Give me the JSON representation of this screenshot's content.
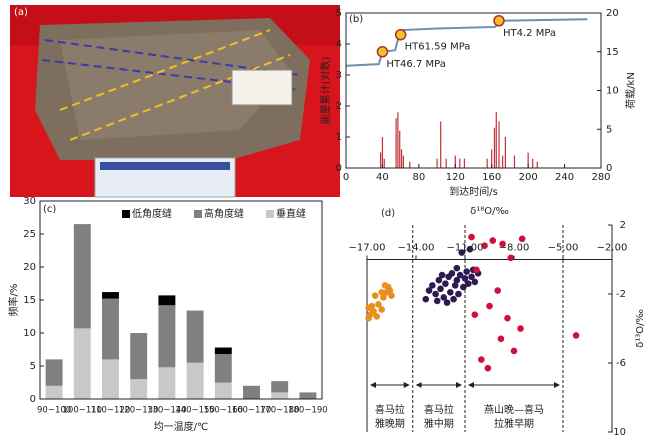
{
  "photo": {
    "label": "(a)"
  },
  "chart_data": [
    {
      "type": "line",
      "label": "(b)",
      "xlabel": "到达时间/s",
      "ylabel": "能量累计(对数)",
      "y2label": "荷载/kN",
      "xlim": [
        0,
        280
      ],
      "xticks": [
        0,
        40,
        80,
        120,
        160,
        200,
        240,
        280
      ],
      "ylim": [
        0,
        5
      ],
      "yticks": [
        0,
        1,
        2,
        3,
        4,
        5
      ],
      "y2lim": [
        0,
        20
      ],
      "y2ticks": [
        0,
        5,
        10,
        15,
        20
      ],
      "series": [
        {
          "type": "line",
          "color": "#6f8fb0",
          "x": [
            0,
            36,
            40,
            54,
            58,
            62,
            100,
            164,
            168,
            265
          ],
          "values": [
            3.3,
            3.35,
            3.75,
            3.8,
            4.25,
            4.45,
            4.5,
            4.55,
            4.75,
            4.8
          ]
        },
        {
          "type": "bar",
          "color": "#c0303a",
          "x": [
            38,
            40,
            42,
            55,
            57,
            59,
            61,
            63,
            70,
            100,
            104,
            110,
            120,
            125,
            130,
            155,
            160,
            163,
            165,
            168,
            172,
            175,
            185,
            200,
            205,
            210
          ],
          "values": [
            0.5,
            1.0,
            0.3,
            1.6,
            1.8,
            1.2,
            0.6,
            0.4,
            0.2,
            0.3,
            1.5,
            0.3,
            0.4,
            0.3,
            0.3,
            0.3,
            0.6,
            1.3,
            1.8,
            1.5,
            0.4,
            1.0,
            0.4,
            0.5,
            0.3,
            0.2
          ]
        }
      ],
      "annotations": [
        {
          "text": "HT46.7 MPa",
          "x": 40,
          "y": 3.75
        },
        {
          "text": "HT61.59 MPa",
          "x": 60,
          "y": 4.3
        },
        {
          "text": "HT4.2 MPa",
          "x": 168,
          "y": 4.75
        }
      ]
    },
    {
      "type": "bar",
      "label": "(c)",
      "stacked": true,
      "xlabel": "均一温度/℃",
      "ylabel": "频率/%",
      "categories": [
        "90~100",
        "100~110",
        "110~120",
        "120~130",
        "130~140",
        "140~150",
        "150~160",
        "160~170",
        "170~180",
        "180~190"
      ],
      "ylim": [
        0,
        30
      ],
      "yticks": [
        0,
        5,
        10,
        15,
        20,
        25,
        30
      ],
      "series": [
        {
          "name": "低角度缝",
          "color": "#000000",
          "values": [
            0,
            0,
            1,
            0,
            1.5,
            0,
            1,
            0,
            0,
            0
          ]
        },
        {
          "name": "高角度缝",
          "color": "#808080",
          "values": [
            4,
            15.8,
            9.2,
            7,
            9.4,
            7.9,
            4.3,
            2,
            1.7,
            1
          ]
        },
        {
          "name": "垂直缝",
          "color": "#c8c8c8",
          "values": [
            2,
            10.7,
            6,
            3,
            4.8,
            5.5,
            2.5,
            0,
            1,
            0
          ]
        }
      ]
    },
    {
      "type": "scatter",
      "label": "(d)",
      "xlabel": "δ¹⁸O/‰",
      "y2label": "δ¹³O/‰",
      "xlim": [
        -17,
        -2
      ],
      "xticks": [
        {
          "value": -17,
          "label": "−17.00"
        },
        {
          "value": -14,
          "label": "−14.00"
        },
        {
          "value": -11,
          "label": "−11.00"
        },
        {
          "value": -8,
          "label": "−8.00"
        },
        {
          "value": -5,
          "label": "−5.00"
        },
        {
          "value": -2,
          "label": "−2.00"
        }
      ],
      "ylim": [
        2,
        -10
      ],
      "yticks": [
        2,
        -2,
        -6,
        -10
      ],
      "series": [
        {
          "color": "#e8901e",
          "x": [
            -16.9,
            -16.8,
            -16.6,
            -16.4,
            -16.9,
            -16.3,
            -16.1,
            -16.5,
            -16.0,
            -15.8,
            -15.6,
            -15.5,
            -15.9,
            -15.7,
            -16.1,
            -16.7
          ],
          "values": [
            -3.4,
            -3.2,
            -3.0,
            -3.3,
            -2.8,
            -2.6,
            -2.9,
            -2.1,
            -2.2,
            -1.9,
            -1.8,
            -2.1,
            -1.5,
            -1.6,
            -1.9,
            -2.7
          ]
        },
        {
          "color": "#2e1a4f",
          "x": [
            -13.2,
            -13.0,
            -12.8,
            -12.6,
            -12.5,
            -12.3,
            -12.2,
            -12.0,
            -11.9,
            -11.8,
            -11.6,
            -11.5,
            -11.4,
            -11.3,
            -11.1,
            -11.0,
            -10.9,
            -10.8,
            -10.6,
            -10.5,
            -12.7,
            -12.1,
            -11.7,
            -10.4,
            -10.2,
            -11.2,
            -10.7,
            -13.4,
            -12.4,
            -11.5
          ],
          "values": [
            -1.8,
            -1.5,
            -2.0,
            -1.2,
            -1.7,
            -2.2,
            -1.4,
            -1.0,
            -1.9,
            -0.8,
            -1.5,
            -1.2,
            -2.0,
            -0.9,
            -1.6,
            -1.1,
            -0.7,
            -1.4,
            -1.0,
            -0.6,
            -2.4,
            -2.5,
            -2.3,
            -1.3,
            -0.8,
            0.4,
            0.6,
            -2.3,
            -0.9,
            -0.5
          ]
        },
        {
          "color": "#d0103a",
          "x": [
            -10.6,
            -9.8,
            -9.3,
            -8.7,
            -8.2,
            -7.5,
            -10.3,
            -9.0,
            -9.5,
            -8.4,
            -8.8,
            -7.6,
            -8.0,
            -10.0,
            -9.6,
            -4.2,
            -10.4
          ],
          "values": [
            1.3,
            0.8,
            1.1,
            0.9,
            0.1,
            1.2,
            -0.6,
            -1.8,
            -2.7,
            -3.4,
            -4.6,
            -4.0,
            -5.3,
            -5.8,
            -6.3,
            -4.4,
            -3.2
          ]
        }
      ],
      "periods": [
        {
          "label": [
            "喜马拉",
            "雅晚期"
          ],
          "from": -17,
          "to": -14.2
        },
        {
          "label": [
            "喜马拉",
            "雅中期"
          ],
          "from": -14.2,
          "to": -11
        },
        {
          "label": [
            "燕山晚—喜马",
            "拉雅早期"
          ],
          "from": -11,
          "to": -5
        }
      ]
    }
  ]
}
